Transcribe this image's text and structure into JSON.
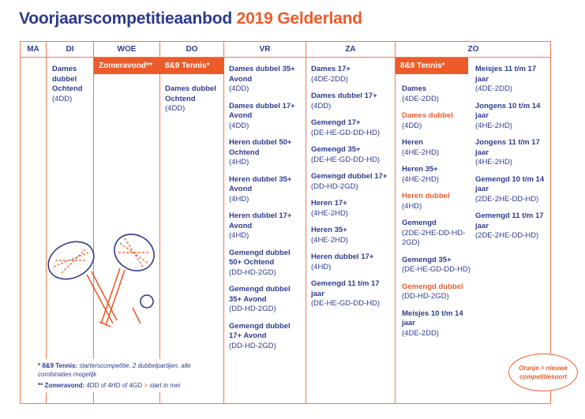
{
  "title": {
    "main": "Voorjaarscompetitieaanbod",
    "accent": "2019 Gelderland"
  },
  "colors": {
    "blue": "#2e3c8f",
    "orange": "#ee5b2b"
  },
  "days": [
    "MA",
    "DI",
    "WOE",
    "DO",
    "VR",
    "ZA",
    "ZO"
  ],
  "badges": {
    "woe": "Zomeravond**",
    "do": "8&9 Tennis*",
    "zo": "8&9 Tennis*"
  },
  "columns": {
    "di": [
      {
        "t": "Dames dubbel Ochtend",
        "c": "(4DD)"
      }
    ],
    "do": [
      {
        "t": "Dames dubbel Ochtend",
        "c": "(4DD)"
      }
    ],
    "vr": [
      {
        "t": "Dames dubbel 35+ Avond",
        "c": "(4DD)"
      },
      {
        "t": "Dames dubbel 17+ Avond",
        "c": "(4DD)"
      },
      {
        "t": "Heren dubbel 50+ Ochtend",
        "c": "(4HD)"
      },
      {
        "t": "Heren dubbel 35+ Avond",
        "c": "(4HD)"
      },
      {
        "t": "Heren dubbel 17+ Avond",
        "c": "(4HD)"
      },
      {
        "t": "Gemengd dubbel 50+ Ochtend",
        "c": "(DD-HD-2GD)"
      },
      {
        "t": "Gemengd dubbel 35+ Avond",
        "c": "(DD-HD-2GD)"
      },
      {
        "t": "Gemengd dubbel 17+ Avond",
        "c": "(DD-HD-2GD)"
      }
    ],
    "za": [
      {
        "t": "Dames 17+",
        "c": "(4DE-2DD)"
      },
      {
        "t": "Dames dubbel 17+",
        "c": "(4DD)"
      },
      {
        "t": "Gemengd 17+",
        "c": "(DE-HE-GD-DD-HD)"
      },
      {
        "t": "Gemengd 35+",
        "c": "(DE-HE-GD-DD-HD)"
      },
      {
        "t": "Gemengd dubbel 17+",
        "c": "(DD-HD-2GD)"
      },
      {
        "t": "Heren 17+",
        "c": "(4HE-2HD)"
      },
      {
        "t": "Heren 35+",
        "c": "(4HE-2HD)"
      },
      {
        "t": "Heren dubbel 17+",
        "c": "(4HD)"
      },
      {
        "t": "Gemengd 11 t/m 17 jaar",
        "c": "(DE-HE-GD-DD-HD)"
      }
    ],
    "zo_left": [
      {
        "t": "Dames",
        "c": "(4DE-2DD)"
      },
      {
        "t": "Dames dubbel",
        "c": "(4DD)",
        "o": true
      },
      {
        "t": "Heren",
        "c": "(4HE-2HD)"
      },
      {
        "t": "Heren 35+",
        "c": "(4HE-2HD)"
      },
      {
        "t": "Heren dubbel",
        "c": "(4HD)",
        "o": true
      },
      {
        "t": "Gemengd",
        "c": "(2DE-2HE-DD-HD-2GD)"
      },
      {
        "t": "Gemengd 35+",
        "c": "(DE-HE-GD-DD-HD)"
      },
      {
        "t": "Gemengd dubbel",
        "c": "(DD-HD-2GD)",
        "o": true
      },
      {
        "t": "Meisjes 10 t/m 14 jaar",
        "c": "(4DE-2DD)"
      }
    ],
    "zo_right": [
      {
        "t": "Meisjes 11 t/m 17 jaar",
        "c": "(4DE-2DD)"
      },
      {
        "t": "Jongens 10 t/m 14 jaar",
        "c": "(4HE-2HD)"
      },
      {
        "t": "Jongens 11 t/m 17 jaar",
        "c": "(4HE-2HD)"
      },
      {
        "t": "Gemengd 10 t/m 14 jaar",
        "c": "(2DE-2HE-DD-HD)"
      },
      {
        "t": "Gemengd 11 t/m 17 jaar",
        "c": "(2DE-2HE-DD-HD)"
      }
    ]
  },
  "footnotes": {
    "f1_label": "* 8&9 Tennis:",
    "f1_text": "starterscompetitie, 2 dubbelpartijen, alle combinaties mogelijk",
    "f2_label": "** Zomeravond:",
    "f2_text": "4DD of 4HD of 4GD",
    "f2_arrow": ">",
    "f2_italic": "start in mei"
  },
  "legend_note": "Oranje = nieuwe competitiesoort"
}
